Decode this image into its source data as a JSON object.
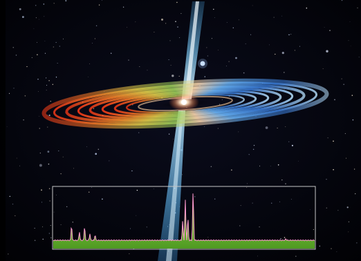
{
  "scene": {
    "subject": "accretion-disk",
    "palette": {
      "space": "#020208",
      "jet": "#8fd8ff",
      "disk_hot": "#ffe7c8",
      "disk_warm": "#ff5a2a",
      "disk_mid": "#b8d04a",
      "disk_cool": "#3a86e0",
      "spectrum_fill": "#6fbf33",
      "spectrum_line": "#ff9ad0",
      "panel_border": "#c8c8c8"
    }
  },
  "spectrum": {
    "peaks": [
      {
        "position": 0.07,
        "height": 0.32
      },
      {
        "position": 0.1,
        "height": 0.2
      },
      {
        "position": 0.12,
        "height": 0.3
      },
      {
        "position": 0.14,
        "height": 0.16
      },
      {
        "position": 0.16,
        "height": 0.14
      },
      {
        "position": 0.495,
        "height": 0.4
      },
      {
        "position": 0.505,
        "height": 0.82
      },
      {
        "position": 0.515,
        "height": 0.46
      },
      {
        "position": 0.535,
        "height": 0.98
      },
      {
        "position": 0.89,
        "height": 0.06
      }
    ]
  }
}
